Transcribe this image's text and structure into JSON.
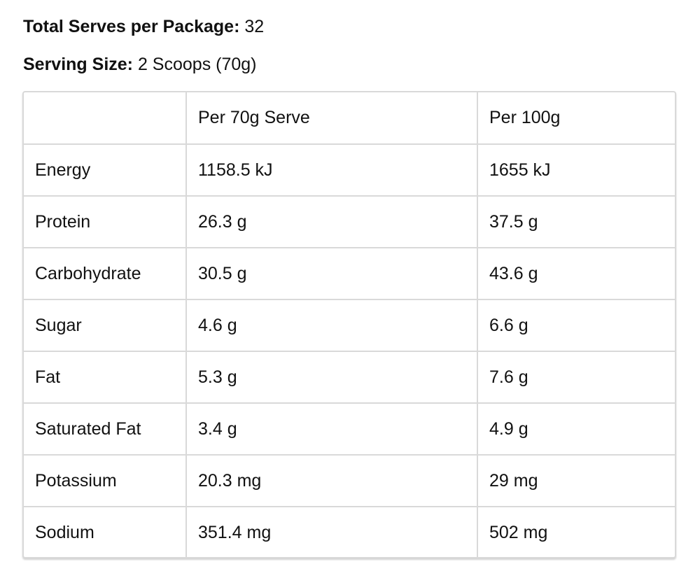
{
  "summary": {
    "serves_label": "Total Serves per Package:",
    "serves_value": "32",
    "size_label": "Serving Size:",
    "size_value": "2 Scoops (70g)"
  },
  "table": {
    "headers": [
      "",
      "Per 70g Serve",
      "Per 100g"
    ],
    "rows": [
      {
        "nutrient": "Energy",
        "per_serve": "1158.5 kJ",
        "per_100g": "1655 kJ"
      },
      {
        "nutrient": "Protein",
        "per_serve": "26.3 g",
        "per_100g": "37.5 g"
      },
      {
        "nutrient": "Carbohydrate",
        "per_serve": "30.5 g",
        "per_100g": "43.6 g"
      },
      {
        "nutrient": "Sugar",
        "per_serve": "4.6 g",
        "per_100g": "6.6 g"
      },
      {
        "nutrient": "Fat",
        "per_serve": "5.3 g",
        "per_100g": "7.6 g"
      },
      {
        "nutrient": "Saturated Fat",
        "per_serve": "3.4 g",
        "per_100g": "4.9 g"
      },
      {
        "nutrient": "Potassium",
        "per_serve": "20.3 mg",
        "per_100g": "29 mg"
      },
      {
        "nutrient": "Sodium",
        "per_serve": "351.4 mg",
        "per_100g": "502 mg"
      }
    ]
  }
}
